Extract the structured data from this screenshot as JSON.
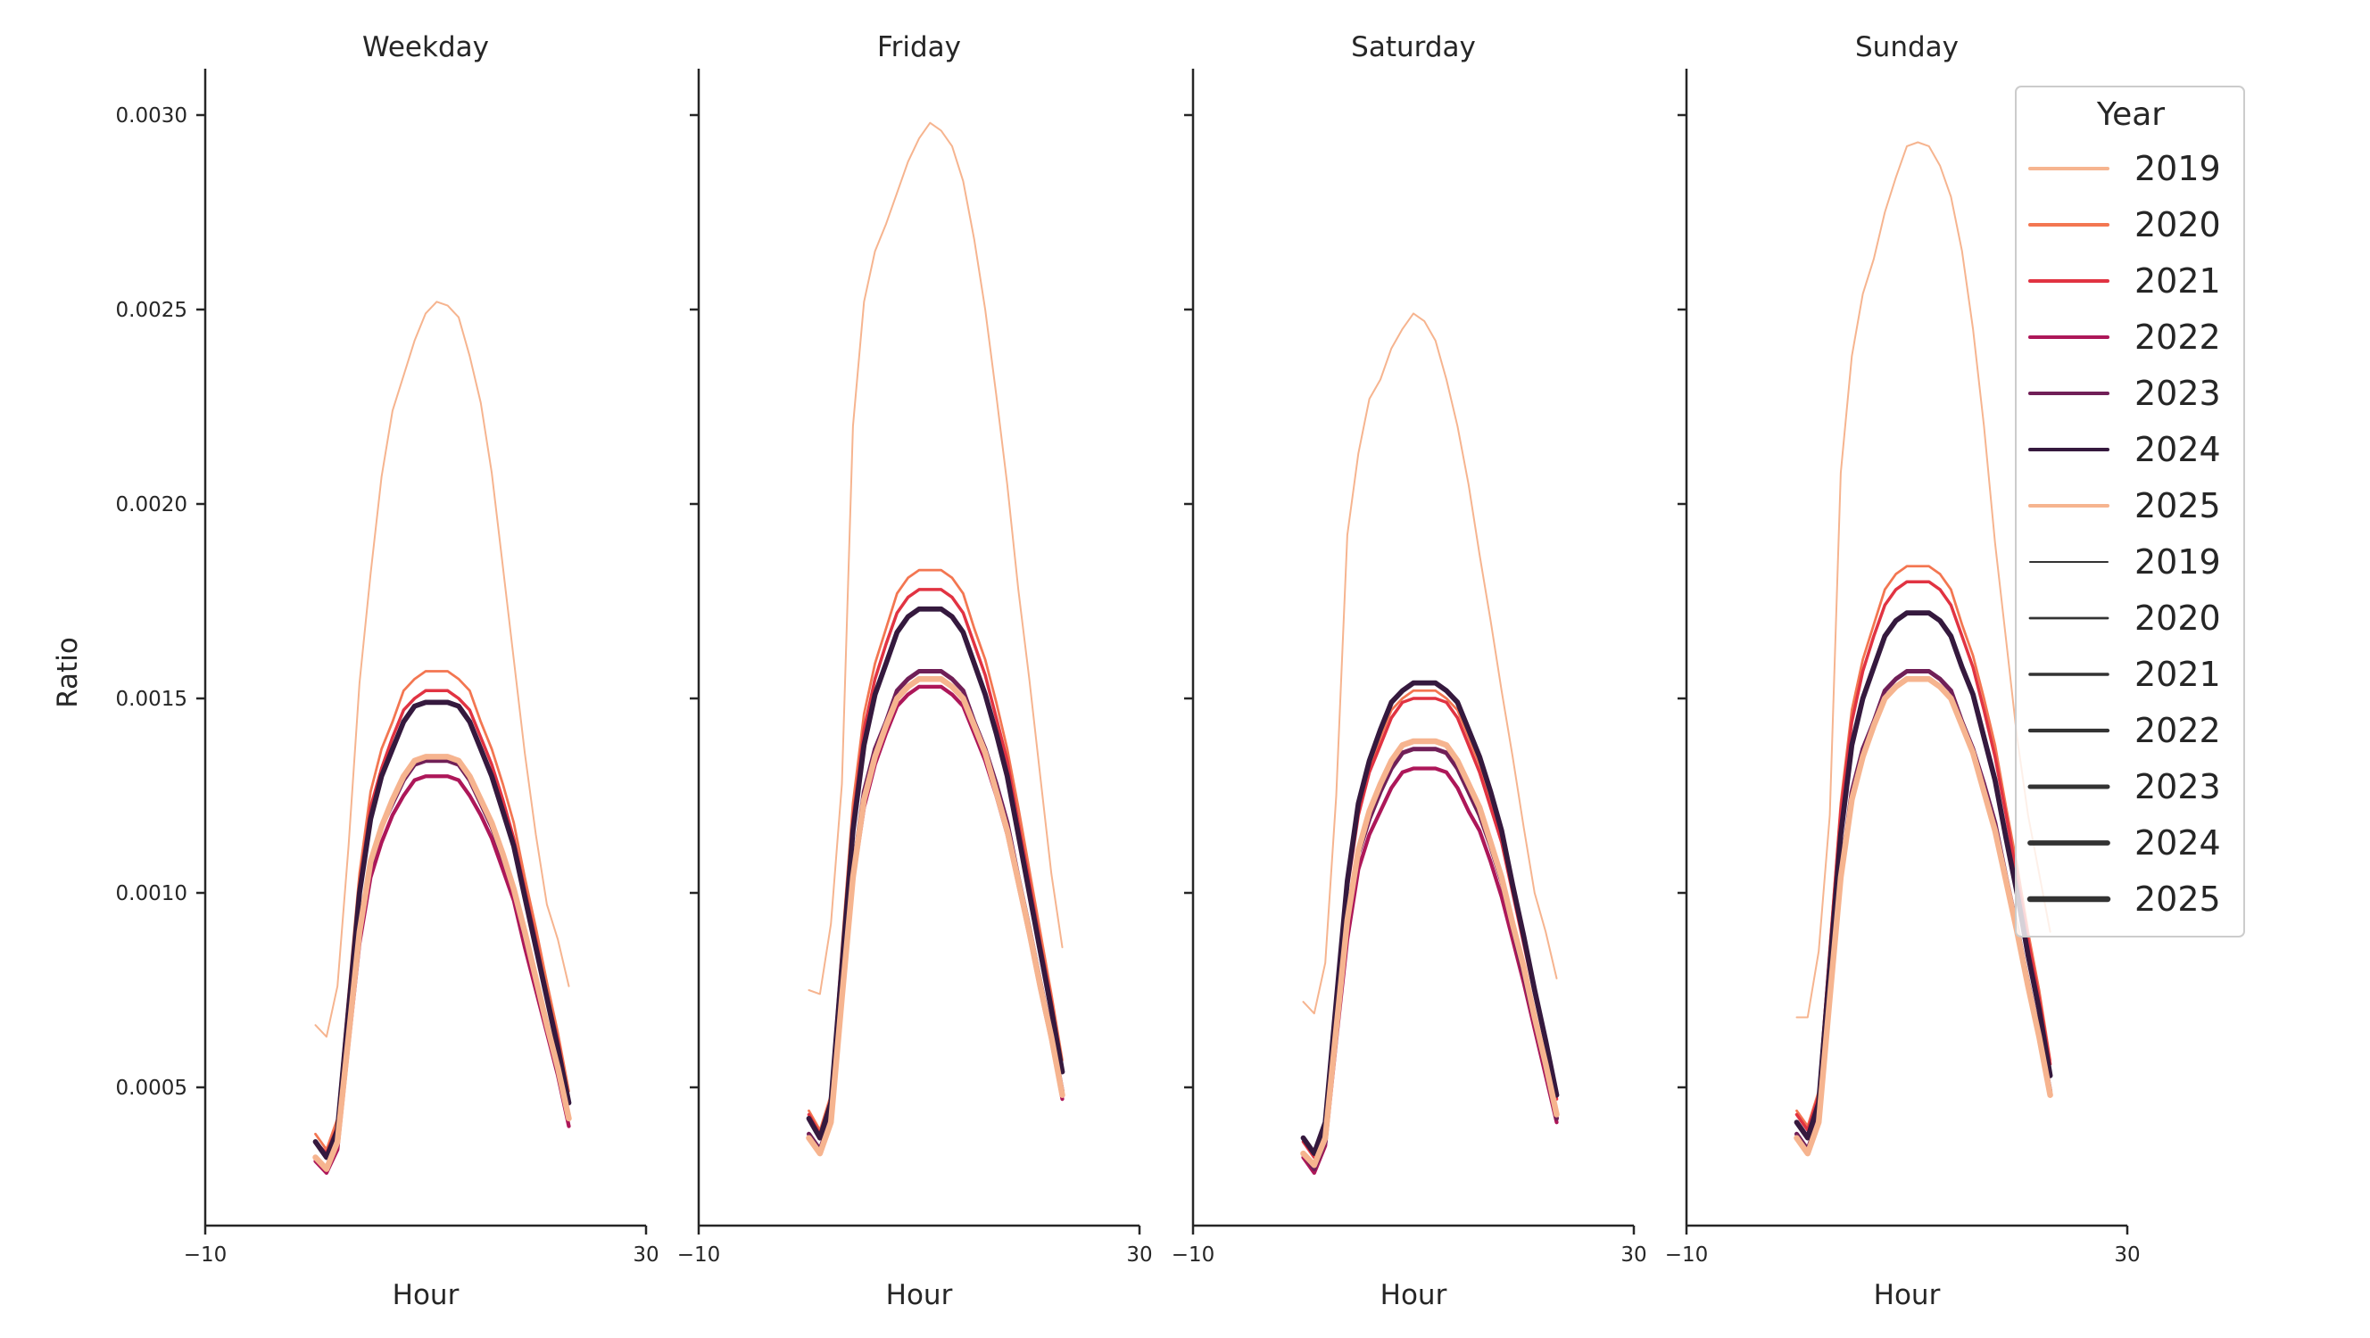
{
  "figure": {
    "ylabel": "Ratio",
    "xlabel": "Hour",
    "ytick_labels": [
      "0.0005",
      "0.0010",
      "0.0015",
      "0.0020",
      "0.0025",
      "0.0030"
    ],
    "ytick_values": [
      0.0005,
      0.001,
      0.0015,
      0.002,
      0.0025,
      0.003
    ],
    "xtick_labels": [
      "−10",
      "30"
    ],
    "xtick_values": [
      -10,
      30
    ]
  },
  "legend": {
    "title": "Year",
    "position": "top-right",
    "hue_entries": [
      {
        "label": "2019",
        "color": "#f6b48f"
      },
      {
        "label": "2020",
        "color": "#f37651"
      },
      {
        "label": "2021",
        "color": "#e13342"
      },
      {
        "label": "2022",
        "color": "#ad1759"
      },
      {
        "label": "2023",
        "color": "#701f57"
      },
      {
        "label": "2024",
        "color": "#35193e"
      },
      {
        "label": "2025",
        "color": "#f6b48f"
      }
    ],
    "size_entries": [
      {
        "label": "2019"
      },
      {
        "label": "2020"
      },
      {
        "label": "2021"
      },
      {
        "label": "2022"
      },
      {
        "label": "2023"
      },
      {
        "label": "2024"
      },
      {
        "label": "2025"
      }
    ]
  },
  "chart_data": [
    {
      "type": "line",
      "title": "Weekday",
      "xlabel": "Hour",
      "ylabel": "Ratio",
      "xlim": [
        -10,
        30
      ],
      "ylim": [
        0.00015,
        0.00312
      ],
      "grid": false,
      "x": [
        0,
        1,
        2,
        3,
        4,
        5,
        6,
        7,
        8,
        9,
        10,
        11,
        12,
        13,
        14,
        15,
        16,
        17,
        18,
        19,
        20,
        21,
        22,
        23
      ],
      "series": [
        {
          "name": "2019",
          "values": [
            0.00066,
            0.00063,
            0.00076,
            0.00112,
            0.00154,
            0.00182,
            0.00207,
            0.00224,
            0.00233,
            0.00242,
            0.00249,
            0.00252,
            0.00251,
            0.00248,
            0.00238,
            0.00226,
            0.00208,
            0.00184,
            0.0016,
            0.00136,
            0.00115,
            0.00097,
            0.00088,
            0.00076
          ]
        },
        {
          "name": "2020",
          "values": [
            0.00038,
            0.00034,
            0.00042,
            0.00074,
            0.00105,
            0.00126,
            0.00137,
            0.00144,
            0.00152,
            0.00155,
            0.00157,
            0.00157,
            0.00157,
            0.00155,
            0.00152,
            0.00144,
            0.00137,
            0.00128,
            0.00118,
            0.00104,
            0.00091,
            0.00077,
            0.00064,
            0.00049
          ]
        },
        {
          "name": "2021",
          "values": [
            0.00036,
            0.00033,
            0.0004,
            0.00071,
            0.00102,
            0.00122,
            0.00132,
            0.0014,
            0.00147,
            0.0015,
            0.00152,
            0.00152,
            0.00152,
            0.0015,
            0.00147,
            0.0014,
            0.00133,
            0.00124,
            0.00114,
            0.00101,
            0.00088,
            0.00074,
            0.00062,
            0.00047
          ]
        },
        {
          "name": "2022",
          "values": [
            0.00031,
            0.00028,
            0.00034,
            0.00061,
            0.00087,
            0.00104,
            0.00113,
            0.0012,
            0.00125,
            0.00129,
            0.0013,
            0.0013,
            0.0013,
            0.00129,
            0.00125,
            0.0012,
            0.00114,
            0.00106,
            0.00098,
            0.00086,
            0.00075,
            0.00064,
            0.00053,
            0.0004
          ]
        },
        {
          "name": "2023",
          "values": [
            0.00032,
            0.00029,
            0.00036,
            0.00063,
            0.0009,
            0.00107,
            0.00117,
            0.00123,
            0.00129,
            0.00133,
            0.00134,
            0.00134,
            0.00134,
            0.00133,
            0.00129,
            0.00123,
            0.00117,
            0.00109,
            0.00101,
            0.00089,
            0.00078,
            0.00066,
            0.00054,
            0.00042
          ]
        },
        {
          "name": "2024",
          "values": [
            0.00036,
            0.00032,
            0.00039,
            0.0007,
            0.001,
            0.00119,
            0.0013,
            0.00137,
            0.00144,
            0.00148,
            0.00149,
            0.00149,
            0.00149,
            0.00148,
            0.00144,
            0.00137,
            0.0013,
            0.00121,
            0.00112,
            0.00099,
            0.00086,
            0.00073,
            0.0006,
            0.00046
          ]
        },
        {
          "name": "2025",
          "values": [
            0.00032,
            0.00029,
            0.00036,
            0.00063,
            0.0009,
            0.00108,
            0.00117,
            0.00124,
            0.0013,
            0.00134,
            0.00135,
            0.00135,
            0.00135,
            0.00134,
            0.0013,
            0.00124,
            0.00118,
            0.0011,
            0.00101,
            0.0009,
            0.00078,
            0.00066,
            0.00055,
            0.00042
          ]
        }
      ]
    },
    {
      "type": "line",
      "title": "Friday",
      "xlabel": "Hour",
      "xlim": [
        -10,
        30
      ],
      "ylim": [
        0.00015,
        0.00312
      ],
      "grid": false,
      "x": [
        0,
        1,
        2,
        3,
        4,
        5,
        6,
        7,
        8,
        9,
        10,
        11,
        12,
        13,
        14,
        15,
        16,
        17,
        18,
        19,
        20,
        21,
        22,
        23
      ],
      "series": [
        {
          "name": "2019",
          "values": [
            0.00075,
            0.00074,
            0.00092,
            0.00128,
            0.0022,
            0.00252,
            0.00265,
            0.00272,
            0.0028,
            0.00288,
            0.00294,
            0.00298,
            0.00296,
            0.00292,
            0.00283,
            0.00268,
            0.0025,
            0.00228,
            0.00205,
            0.00178,
            0.00155,
            0.0013,
            0.00105,
            0.00086
          ]
        },
        {
          "name": "2020",
          "values": [
            0.00044,
            0.00039,
            0.00048,
            0.00086,
            0.00123,
            0.00146,
            0.00159,
            0.00168,
            0.00177,
            0.00181,
            0.00183,
            0.00183,
            0.00183,
            0.00181,
            0.00177,
            0.00168,
            0.0016,
            0.00149,
            0.00137,
            0.00122,
            0.00106,
            0.0009,
            0.00074,
            0.00057
          ]
        },
        {
          "name": "2021",
          "values": [
            0.00043,
            0.00038,
            0.00047,
            0.00084,
            0.00119,
            0.00142,
            0.00155,
            0.00164,
            0.00172,
            0.00176,
            0.00178,
            0.00178,
            0.00178,
            0.00176,
            0.00172,
            0.00164,
            0.00156,
            0.00145,
            0.00134,
            0.00118,
            0.00103,
            0.00087,
            0.00072,
            0.00055
          ]
        },
        {
          "name": "2022",
          "values": [
            0.00037,
            0.00033,
            0.00041,
            0.00072,
            0.00103,
            0.00122,
            0.00133,
            0.00141,
            0.00148,
            0.00151,
            0.00153,
            0.00153,
            0.00153,
            0.00151,
            0.00148,
            0.00141,
            0.00134,
            0.00125,
            0.00115,
            0.00102,
            0.00089,
            0.00075,
            0.00062,
            0.00047
          ]
        },
        {
          "name": "2023",
          "values": [
            0.00038,
            0.00034,
            0.00042,
            0.00074,
            0.00105,
            0.00126,
            0.00137,
            0.00144,
            0.00152,
            0.00155,
            0.00157,
            0.00157,
            0.00157,
            0.00155,
            0.00152,
            0.00144,
            0.00137,
            0.00128,
            0.00118,
            0.00104,
            0.00091,
            0.00077,
            0.00064,
            0.00049
          ]
        },
        {
          "name": "2024",
          "values": [
            0.00042,
            0.00037,
            0.00046,
            0.00081,
            0.00116,
            0.00138,
            0.00151,
            0.00159,
            0.00167,
            0.00171,
            0.00173,
            0.00173,
            0.00173,
            0.00171,
            0.00167,
            0.00159,
            0.00151,
            0.00141,
            0.0013,
            0.00115,
            0.001,
            0.00085,
            0.0007,
            0.00054
          ]
        },
        {
          "name": "2025",
          "values": [
            0.00037,
            0.00033,
            0.00041,
            0.00073,
            0.00104,
            0.00124,
            0.00135,
            0.00143,
            0.0015,
            0.00153,
            0.00155,
            0.00155,
            0.00155,
            0.00153,
            0.0015,
            0.00143,
            0.00136,
            0.00126,
            0.00116,
            0.00103,
            0.0009,
            0.00076,
            0.00063,
            0.00048
          ]
        }
      ]
    },
    {
      "type": "line",
      "title": "Saturday",
      "xlabel": "Hour",
      "xlim": [
        -10,
        30
      ],
      "ylim": [
        0.00015,
        0.00312
      ],
      "grid": false,
      "x": [
        0,
        1,
        2,
        3,
        4,
        5,
        6,
        7,
        8,
        9,
        10,
        11,
        12,
        13,
        14,
        15,
        16,
        17,
        18,
        19,
        20,
        21,
        22,
        23
      ],
      "series": [
        {
          "name": "2019",
          "values": [
            0.00072,
            0.00069,
            0.00082,
            0.00125,
            0.00192,
            0.00213,
            0.00227,
            0.00232,
            0.0024,
            0.00245,
            0.00249,
            0.00247,
            0.00242,
            0.00232,
            0.0022,
            0.00205,
            0.00187,
            0.0017,
            0.00152,
            0.00135,
            0.00117,
            0.001,
            0.0009,
            0.00078
          ]
        },
        {
          "name": "2020",
          "values": [
            0.00036,
            0.00033,
            0.0004,
            0.00071,
            0.00102,
            0.00122,
            0.00132,
            0.0014,
            0.00147,
            0.0015,
            0.00152,
            0.00152,
            0.00152,
            0.0015,
            0.00147,
            0.0014,
            0.00133,
            0.00124,
            0.00114,
            0.00101,
            0.00088,
            0.00074,
            0.00062,
            0.00047
          ]
        },
        {
          "name": "2021",
          "values": [
            0.00036,
            0.00032,
            0.0004,
            0.00071,
            0.00101,
            0.0012,
            0.00131,
            0.00138,
            0.00145,
            0.00149,
            0.0015,
            0.0015,
            0.0015,
            0.00149,
            0.00145,
            0.00138,
            0.00131,
            0.00122,
            0.00113,
            0.001,
            0.00087,
            0.00074,
            0.00061,
            0.00047
          ]
        },
        {
          "name": "2022",
          "values": [
            0.00032,
            0.00028,
            0.00035,
            0.00062,
            0.00088,
            0.00106,
            0.00115,
            0.00121,
            0.00127,
            0.00131,
            0.00132,
            0.00132,
            0.00132,
            0.00131,
            0.00127,
            0.00121,
            0.00116,
            0.00108,
            0.00099,
            0.00088,
            0.00077,
            0.00065,
            0.00053,
            0.00041
          ]
        },
        {
          "name": "2023",
          "values": [
            0.00033,
            0.00029,
            0.00036,
            0.00064,
            0.00092,
            0.0011,
            0.00119,
            0.00126,
            0.00132,
            0.00136,
            0.00137,
            0.00137,
            0.00137,
            0.00136,
            0.00132,
            0.00126,
            0.0012,
            0.00112,
            0.00103,
            0.00091,
            0.00079,
            0.00067,
            0.00055,
            0.00042
          ]
        },
        {
          "name": "2024",
          "values": [
            0.00037,
            0.00033,
            0.00041,
            0.00072,
            0.00103,
            0.00123,
            0.00134,
            0.00142,
            0.00149,
            0.00152,
            0.00154,
            0.00154,
            0.00154,
            0.00152,
            0.00149,
            0.00142,
            0.00135,
            0.00126,
            0.00116,
            0.00102,
            0.00089,
            0.00075,
            0.00062,
            0.00048
          ]
        },
        {
          "name": "2025",
          "values": [
            0.00033,
            0.0003,
            0.00037,
            0.00065,
            0.00093,
            0.00111,
            0.00121,
            0.00128,
            0.00134,
            0.00138,
            0.00139,
            0.00139,
            0.00139,
            0.00138,
            0.00134,
            0.00128,
            0.00122,
            0.00113,
            0.00104,
            0.00092,
            0.00081,
            0.00068,
            0.00056,
            0.00043
          ]
        }
      ]
    },
    {
      "type": "line",
      "title": "Sunday",
      "xlabel": "Hour",
      "xlim": [
        -10,
        30
      ],
      "ylim": [
        0.00015,
        0.00312
      ],
      "grid": false,
      "x": [
        0,
        1,
        2,
        3,
        4,
        5,
        6,
        7,
        8,
        9,
        10,
        11,
        12,
        13,
        14,
        15,
        16,
        17,
        18,
        19,
        20,
        21,
        22,
        23
      ],
      "series": [
        {
          "name": "2019",
          "values": [
            0.00068,
            0.00068,
            0.00085,
            0.0012,
            0.00208,
            0.00238,
            0.00254,
            0.00263,
            0.00275,
            0.00284,
            0.00292,
            0.00293,
            0.00292,
            0.00287,
            0.00279,
            0.00265,
            0.00245,
            0.0022,
            0.0019,
            0.00165,
            0.0014,
            0.0012,
            0.00105,
            0.0009
          ]
        },
        {
          "name": "2020",
          "values": [
            0.00044,
            0.0004,
            0.00049,
            0.00086,
            0.00123,
            0.00147,
            0.0016,
            0.00169,
            0.00178,
            0.00182,
            0.00184,
            0.00184,
            0.00184,
            0.00182,
            0.00178,
            0.00169,
            0.00161,
            0.0015,
            0.00138,
            0.00122,
            0.00107,
            0.0009,
            0.00075,
            0.00057
          ]
        },
        {
          "name": "2021",
          "values": [
            0.00043,
            0.00039,
            0.00048,
            0.00085,
            0.00121,
            0.00144,
            0.00157,
            0.00166,
            0.00174,
            0.00178,
            0.0018,
            0.0018,
            0.0018,
            0.00178,
            0.00174,
            0.00166,
            0.00158,
            0.00147,
            0.00135,
            0.0012,
            0.00104,
            0.00088,
            0.00073,
            0.00056
          ]
        },
        {
          "name": "2022",
          "values": [
            0.00037,
            0.00033,
            0.00041,
            0.00073,
            0.00104,
            0.00124,
            0.00135,
            0.00143,
            0.0015,
            0.00153,
            0.00155,
            0.00155,
            0.00155,
            0.00153,
            0.0015,
            0.00143,
            0.00136,
            0.00126,
            0.00116,
            0.00103,
            0.0009,
            0.00076,
            0.00063,
            0.00048
          ]
        },
        {
          "name": "2023",
          "values": [
            0.00038,
            0.00034,
            0.00042,
            0.00074,
            0.00105,
            0.00126,
            0.00137,
            0.00144,
            0.00152,
            0.00155,
            0.00157,
            0.00157,
            0.00157,
            0.00155,
            0.00152,
            0.00144,
            0.00137,
            0.00128,
            0.00118,
            0.00104,
            0.00091,
            0.00077,
            0.00064,
            0.00049
          ]
        },
        {
          "name": "2024",
          "values": [
            0.00041,
            0.00037,
            0.00046,
            0.00081,
            0.00115,
            0.00138,
            0.0015,
            0.00158,
            0.00166,
            0.0017,
            0.00172,
            0.00172,
            0.00172,
            0.0017,
            0.00166,
            0.00158,
            0.00151,
            0.0014,
            0.00129,
            0.00114,
            0.001,
            0.00084,
            0.0007,
            0.00053
          ]
        },
        {
          "name": "2025",
          "values": [
            0.00037,
            0.00033,
            0.00041,
            0.00073,
            0.00104,
            0.00124,
            0.00135,
            0.00143,
            0.0015,
            0.00153,
            0.00155,
            0.00155,
            0.00155,
            0.00153,
            0.0015,
            0.00143,
            0.00136,
            0.00126,
            0.00116,
            0.00103,
            0.0009,
            0.00076,
            0.00063,
            0.00048
          ]
        }
      ]
    }
  ]
}
